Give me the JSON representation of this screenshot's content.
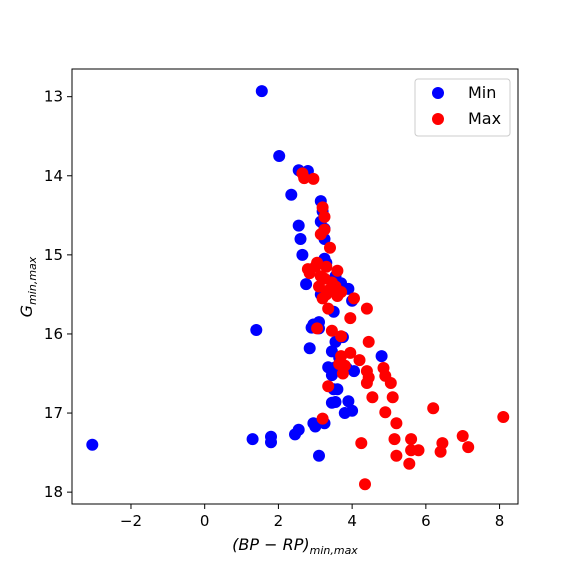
{
  "chart_data": {
    "type": "scatter",
    "xlabel": {
      "base": "(BP − RP)",
      "sub": "min,max"
    },
    "ylabel": {
      "base": "G",
      "sub": "min,max"
    },
    "xlim": [
      -3.6,
      8.5
    ],
    "ylim": [
      12.65,
      18.15
    ],
    "y_inverted": true,
    "xticks": [
      -2,
      0,
      2,
      4,
      6,
      8
    ],
    "yticks": [
      13,
      14,
      15,
      16,
      17,
      18
    ],
    "grid": false,
    "legend_position": "top-right",
    "series": [
      {
        "name": "Min",
        "color": "#0000ff",
        "points": [
          [
            1.55,
            12.93
          ],
          [
            2.02,
            13.75
          ],
          [
            2.55,
            13.93
          ],
          [
            2.8,
            13.94
          ],
          [
            2.35,
            14.24
          ],
          [
            3.15,
            14.32
          ],
          [
            3.2,
            14.45
          ],
          [
            3.15,
            14.58
          ],
          [
            3.25,
            14.67
          ],
          [
            2.55,
            14.63
          ],
          [
            3.25,
            14.8
          ],
          [
            2.6,
            14.8
          ],
          [
            2.65,
            15.0
          ],
          [
            3.25,
            15.05
          ],
          [
            3.3,
            15.1
          ],
          [
            3.55,
            15.27
          ],
          [
            3.7,
            15.36
          ],
          [
            2.75,
            15.37
          ],
          [
            3.15,
            15.5
          ],
          [
            3.9,
            15.43
          ],
          [
            4.0,
            15.58
          ],
          [
            3.5,
            15.72
          ],
          [
            3.1,
            15.85
          ],
          [
            2.95,
            15.88
          ],
          [
            2.9,
            15.92
          ],
          [
            3.1,
            15.93
          ],
          [
            1.4,
            15.95
          ],
          [
            3.75,
            16.04
          ],
          [
            3.55,
            16.1
          ],
          [
            2.85,
            16.18
          ],
          [
            3.45,
            16.22
          ],
          [
            3.65,
            16.3
          ],
          [
            3.35,
            16.42
          ],
          [
            3.55,
            16.42
          ],
          [
            3.45,
            16.52
          ],
          [
            4.05,
            16.47
          ],
          [
            3.85,
            16.43
          ],
          [
            4.8,
            16.28
          ],
          [
            3.5,
            16.7
          ],
          [
            3.6,
            16.7
          ],
          [
            3.9,
            16.85
          ],
          [
            3.45,
            16.87
          ],
          [
            3.55,
            16.86
          ],
          [
            4.0,
            16.97
          ],
          [
            3.8,
            17.0
          ],
          [
            3.25,
            17.13
          ],
          [
            2.95,
            17.13
          ],
          [
            3.0,
            17.17
          ],
          [
            2.55,
            17.21
          ],
          [
            2.45,
            17.27
          ],
          [
            1.8,
            17.3
          ],
          [
            1.3,
            17.33
          ],
          [
            1.8,
            17.37
          ],
          [
            -3.05,
            17.4
          ],
          [
            3.1,
            17.54
          ]
        ]
      },
      {
        "name": "Max",
        "color": "#ff0000",
        "points": [
          [
            2.65,
            13.97
          ],
          [
            2.7,
            14.03
          ],
          [
            2.95,
            14.04
          ],
          [
            3.2,
            14.4
          ],
          [
            3.25,
            14.52
          ],
          [
            3.25,
            14.68
          ],
          [
            3.15,
            14.74
          ],
          [
            3.4,
            14.91
          ],
          [
            3.05,
            15.1
          ],
          [
            3.0,
            15.15
          ],
          [
            3.3,
            15.15
          ],
          [
            2.8,
            15.18
          ],
          [
            3.6,
            15.2
          ],
          [
            2.85,
            15.23
          ],
          [
            3.15,
            15.27
          ],
          [
            3.25,
            15.3
          ],
          [
            3.45,
            15.35
          ],
          [
            3.1,
            15.4
          ],
          [
            3.35,
            15.45
          ],
          [
            3.55,
            15.4
          ],
          [
            3.7,
            15.47
          ],
          [
            3.3,
            15.5
          ],
          [
            3.2,
            15.55
          ],
          [
            3.6,
            15.52
          ],
          [
            4.05,
            15.55
          ],
          [
            3.35,
            15.68
          ],
          [
            4.4,
            15.68
          ],
          [
            3.95,
            15.8
          ],
          [
            3.05,
            15.93
          ],
          [
            3.45,
            15.96
          ],
          [
            3.7,
            16.03
          ],
          [
            4.45,
            16.1
          ],
          [
            3.95,
            16.24
          ],
          [
            3.7,
            16.28
          ],
          [
            4.2,
            16.33
          ],
          [
            3.65,
            16.38
          ],
          [
            3.8,
            16.4
          ],
          [
            4.85,
            16.43
          ],
          [
            4.4,
            16.47
          ],
          [
            3.75,
            16.5
          ],
          [
            4.45,
            16.55
          ],
          [
            4.9,
            16.53
          ],
          [
            4.4,
            16.62
          ],
          [
            5.05,
            16.62
          ],
          [
            3.35,
            16.66
          ],
          [
            4.55,
            16.8
          ],
          [
            5.1,
            16.8
          ],
          [
            4.9,
            16.99
          ],
          [
            6.2,
            16.94
          ],
          [
            8.1,
            17.05
          ],
          [
            3.2,
            17.07
          ],
          [
            5.2,
            17.13
          ],
          [
            7.0,
            17.29
          ],
          [
            5.15,
            17.33
          ],
          [
            5.6,
            17.33
          ],
          [
            4.25,
            17.38
          ],
          [
            6.45,
            17.38
          ],
          [
            7.15,
            17.43
          ],
          [
            5.6,
            17.47
          ],
          [
            5.8,
            17.47
          ],
          [
            6.4,
            17.49
          ],
          [
            5.2,
            17.54
          ],
          [
            5.55,
            17.64
          ],
          [
            4.35,
            17.9
          ]
        ]
      }
    ]
  }
}
